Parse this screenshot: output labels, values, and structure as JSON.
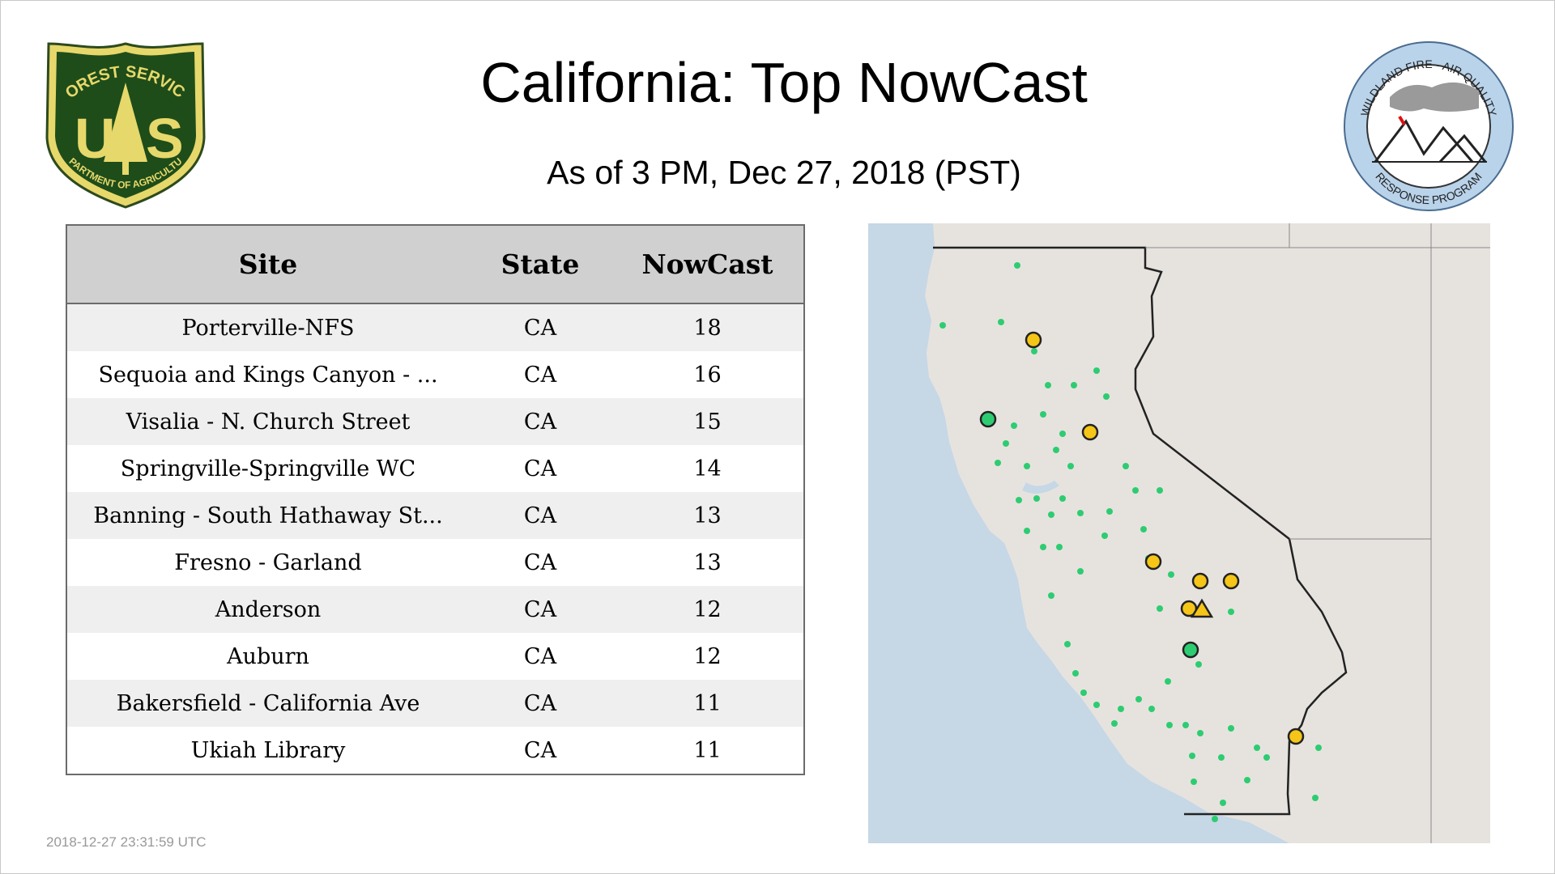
{
  "header": {
    "title": "California: Top NowCast",
    "subtitle": "As of  3 PM, Dec 27, 2018 (PST)"
  },
  "logos": {
    "left": {
      "icon": "forest-service-shield-icon",
      "top_text": "FOREST SERVICE",
      "letters": "U S",
      "bottom_text": "DEPARTMENT OF AGRICULTURE"
    },
    "right": {
      "icon": "wildland-fire-air-quality-icon",
      "top_text": "WILDLAND FIRE · AIR QUALITY",
      "bottom_text": "RESPONSE PROGRAM"
    }
  },
  "table": {
    "headers": [
      "Site",
      "State",
      "NowCast"
    ],
    "rows": [
      {
        "site": "Porterville-NFS",
        "state": "CA",
        "nowcast": "18"
      },
      {
        "site": "Sequoia and Kings Canyon - ...",
        "state": "CA",
        "nowcast": "16"
      },
      {
        "site": "Visalia - N. Church Street",
        "state": "CA",
        "nowcast": "15"
      },
      {
        "site": "Springville-Springville WC",
        "state": "CA",
        "nowcast": "14"
      },
      {
        "site": "Banning - South Hathaway St...",
        "state": "CA",
        "nowcast": "13"
      },
      {
        "site": "Fresno - Garland",
        "state": "CA",
        "nowcast": "13"
      },
      {
        "site": "Anderson",
        "state": "CA",
        "nowcast": "12"
      },
      {
        "site": "Auburn",
        "state": "CA",
        "nowcast": "12"
      },
      {
        "site": "Bakersfield - California Ave",
        "state": "CA",
        "nowcast": "11"
      },
      {
        "site": "Ukiah Library",
        "state": "CA",
        "nowcast": "11"
      }
    ]
  },
  "footer": {
    "timestamp": "2018-12-27 23:31:59 UTC"
  },
  "map": {
    "colors": {
      "ocean": "#c6d7e6",
      "land": "#e6e3df",
      "good": "#2ecc71",
      "moderate": "#f5c518",
      "outline": "#222222"
    }
  }
}
